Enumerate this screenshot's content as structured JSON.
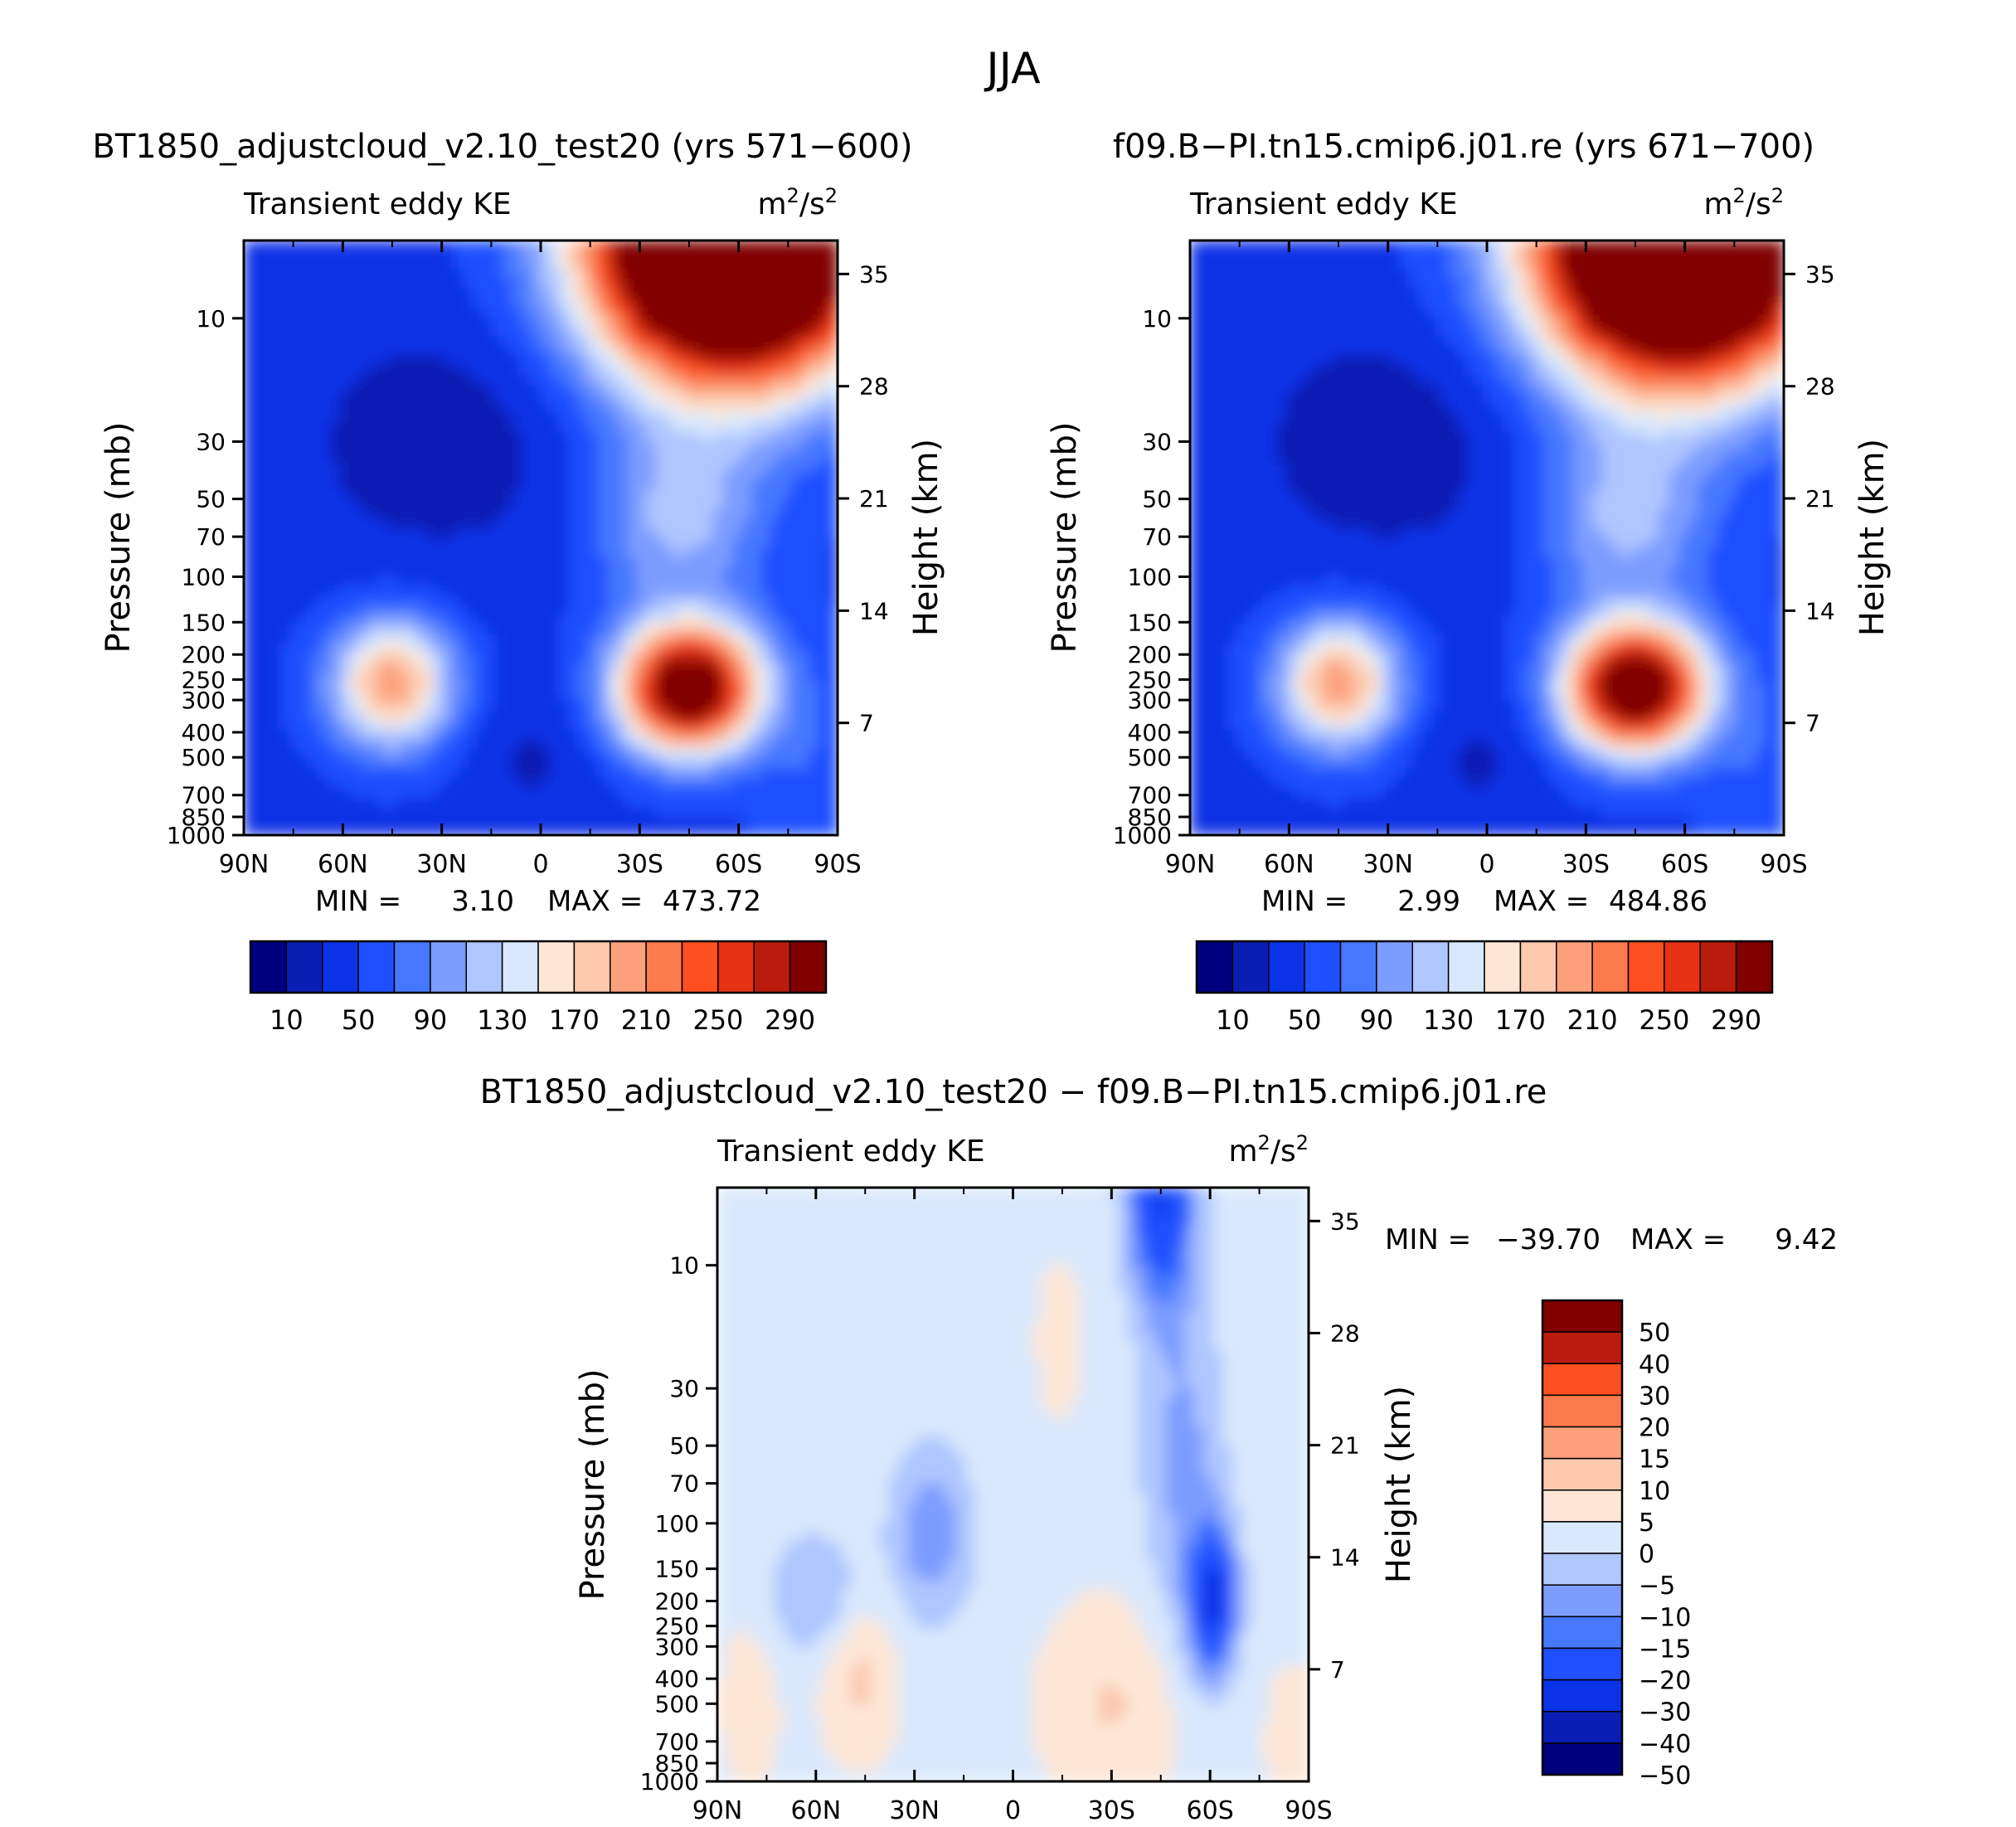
{
  "figure_title": "JJA",
  "colors": {
    "abs_palette": [
      "#00007f",
      "#0a1eb4",
      "#0a32e6",
      "#1e50ff",
      "#4678ff",
      "#7d9cff",
      "#afc6ff",
      "#d9e8fc",
      "#fde6d6",
      "#fcc8ae",
      "#fca17c",
      "#fc7a4b",
      "#fc5020",
      "#e63212",
      "#b91c0c",
      "#800000"
    ],
    "diff_palette": [
      "#00007f",
      "#0a1eb4",
      "#0a32e6",
      "#1e50ff",
      "#4678ff",
      "#7d9cff",
      "#afc6ff",
      "#d9e8fc",
      "#fde6d6",
      "#fcc8ae",
      "#fca17c",
      "#fc7a4b",
      "#fc5020",
      "#b91c0c",
      "#800000"
    ]
  },
  "chart_data": [
    {
      "type": "contour",
      "panel": "top-left",
      "title": "BT1850_adjustcloud_v2.10_test20 (yrs 571−600)",
      "left_label": "Transient eddy KE",
      "units_base": "m",
      "units_mid": "/s",
      "units_exp": "2",
      "ylabel": "Pressure (mb)",
      "ylabel_right": "Height (km)",
      "xticks": [
        "90N",
        "60N",
        "30N",
        "0",
        "30S",
        "60S",
        "90S"
      ],
      "yticks": [
        "10",
        "30",
        "50",
        "70",
        "100",
        "150",
        "200",
        "250",
        "300",
        "400",
        "500",
        "700",
        "850",
        "1000"
      ],
      "yticks_right": [
        "35",
        "28",
        "21",
        "14",
        "7"
      ],
      "ylim": [
        1000,
        5
      ],
      "xlim": [
        90,
        -90
      ],
      "min_label": "MIN =",
      "min_value": "3.10",
      "max_label": "MAX =",
      "max_value": "473.72",
      "colorbar_levels": [
        10,
        30,
        50,
        70,
        90,
        110,
        130,
        150,
        170,
        190,
        210,
        230,
        250,
        270,
        290
      ],
      "colorbar_labels": [
        "10",
        "50",
        "90",
        "130",
        "170",
        "210",
        "250",
        "290"
      ],
      "features": [
        {
          "desc": "NH jet",
          "lat": 45,
          "p": 250,
          "value": 195
        },
        {
          "desc": "SH jet",
          "lat": -45,
          "p": 250,
          "value": 320
        },
        {
          "desc": "SH polar vortex",
          "lat": -60,
          "p": 5,
          "value": 470
        }
      ]
    },
    {
      "type": "contour",
      "panel": "top-right",
      "title": "f09.B−PI.tn15.cmip6.j01.re (yrs 671−700)",
      "left_label": "Transient eddy KE",
      "units_base": "m",
      "units_mid": "/s",
      "units_exp": "2",
      "ylabel": "Pressure (mb)",
      "ylabel_right": "Height (km)",
      "xticks": [
        "90N",
        "60N",
        "30N",
        "0",
        "30S",
        "60S",
        "90S"
      ],
      "yticks": [
        "10",
        "30",
        "50",
        "70",
        "100",
        "150",
        "200",
        "250",
        "300",
        "400",
        "500",
        "700",
        "850",
        "1000"
      ],
      "yticks_right": [
        "35",
        "28",
        "21",
        "14",
        "7"
      ],
      "ylim": [
        1000,
        5
      ],
      "xlim": [
        90,
        -90
      ],
      "min_label": "MIN =",
      "min_value": "2.99",
      "max_label": "MAX =",
      "max_value": "484.86",
      "colorbar_levels": [
        10,
        30,
        50,
        70,
        90,
        110,
        130,
        150,
        170,
        190,
        210,
        230,
        250,
        270,
        290
      ],
      "colorbar_labels": [
        "10",
        "50",
        "90",
        "130",
        "170",
        "210",
        "250",
        "290"
      ],
      "features": [
        {
          "desc": "NH jet",
          "lat": 45,
          "p": 250,
          "value": 190
        },
        {
          "desc": "SH jet",
          "lat": -45,
          "p": 250,
          "value": 330
        },
        {
          "desc": "SH polar vortex",
          "lat": -60,
          "p": 5,
          "value": 480
        }
      ]
    },
    {
      "type": "contour",
      "panel": "bottom-difference",
      "title": "BT1850_adjustcloud_v2.10_test20 − f09.B−PI.tn15.cmip6.j01.re",
      "left_label": "Transient eddy KE",
      "units_base": "m",
      "units_mid": "/s",
      "units_exp": "2",
      "ylabel": "Pressure (mb)",
      "ylabel_right": "Height (km)",
      "xticks": [
        "90N",
        "60N",
        "30N",
        "0",
        "30S",
        "60S",
        "90S"
      ],
      "yticks": [
        "10",
        "30",
        "50",
        "70",
        "100",
        "150",
        "200",
        "250",
        "300",
        "400",
        "500",
        "700",
        "850",
        "1000"
      ],
      "yticks_right": [
        "35",
        "28",
        "21",
        "14",
        "7"
      ],
      "ylim": [
        1000,
        5
      ],
      "xlim": [
        90,
        -90
      ],
      "min_label": "MIN =",
      "min_value": "−39.70",
      "max_label": "MAX =",
      "max_value": "9.42",
      "colorbar_levels": [
        -50,
        -40,
        -30,
        -20,
        -15,
        -10,
        -5,
        0,
        5,
        10,
        15,
        20,
        30,
        40,
        50
      ],
      "colorbar_labels": [
        "50",
        "40",
        "30",
        "20",
        "15",
        "10",
        "5",
        "0",
        "−5",
        "−10",
        "−15",
        "−20",
        "−30",
        "−40",
        "−50"
      ],
      "features": [
        {
          "desc": "SH stratospheric negative",
          "lat": -47,
          "p": 5,
          "value": -30
        },
        {
          "desc": "SH jet negative core",
          "lat": -60,
          "p": 200,
          "value": -30
        },
        {
          "desc": "NH mid-lat positive",
          "lat": 45,
          "p": 350,
          "value": 8
        }
      ]
    }
  ]
}
